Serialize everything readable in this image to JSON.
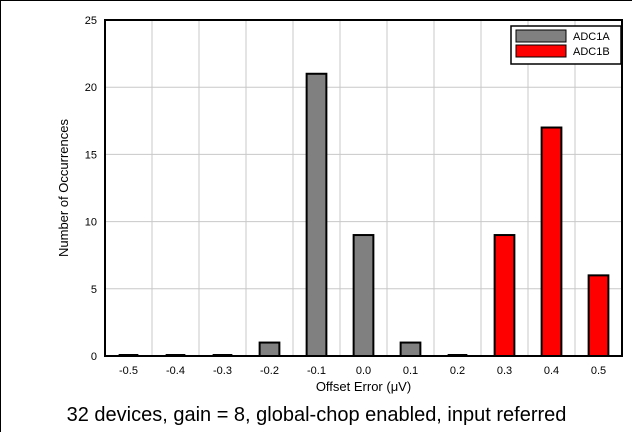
{
  "caption": "32 devices, gain = 8, global-chop enabled, input referred",
  "chart_data": {
    "type": "bar",
    "xlabel": "Offset Error (μV)",
    "ylabel": "Number of Occurrences",
    "categories": [
      "-0.5",
      "-0.4",
      "-0.3",
      "-0.2",
      "-0.1",
      "0.0",
      "0.1",
      "0.2",
      "0.3",
      "0.4",
      "0.5"
    ],
    "ylim": [
      0,
      25
    ],
    "yticks": [
      0,
      5,
      10,
      15,
      20,
      25
    ],
    "grid": true,
    "legend_position": "top-right",
    "series": [
      {
        "name": "ADC1A",
        "color": "#808080",
        "values": [
          0,
          0,
          0,
          1,
          21,
          9,
          1,
          0,
          0,
          0,
          0
        ]
      },
      {
        "name": "ADC1B",
        "color": "#ff0000",
        "values": [
          0,
          0,
          0,
          0,
          0,
          0,
          0,
          0,
          9,
          17,
          6
        ]
      }
    ]
  }
}
